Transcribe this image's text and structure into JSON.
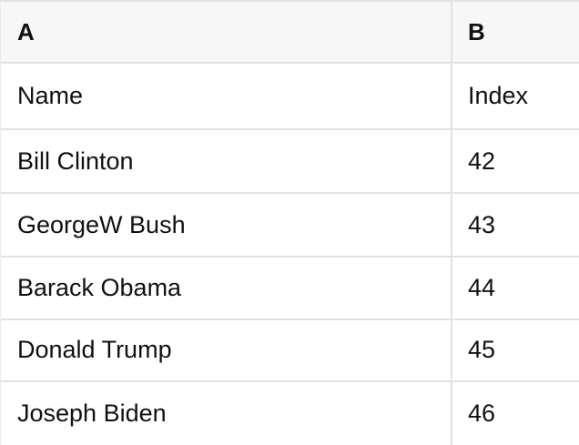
{
  "table": {
    "columns": [
      {
        "key": "A",
        "label": "A"
      },
      {
        "key": "B",
        "label": "B"
      }
    ],
    "rows": [
      {
        "A": "Name",
        "B": "Index"
      },
      {
        "A": "Bill Clinton",
        "B": "42"
      },
      {
        "A": "GeorgeW Bush",
        "B": "43"
      },
      {
        "A": "Barack Obama",
        "B": "44"
      },
      {
        "A": "Donald Trump",
        "B": "45"
      },
      {
        "A": "Joseph Biden",
        "B": "46"
      }
    ]
  },
  "colors": {
    "header_bg": "#f7f7f7",
    "border_color": "#e2e2e2",
    "left_border_color": "#ececec",
    "cell_bg": "#ffffff",
    "text_color": "#111111"
  }
}
